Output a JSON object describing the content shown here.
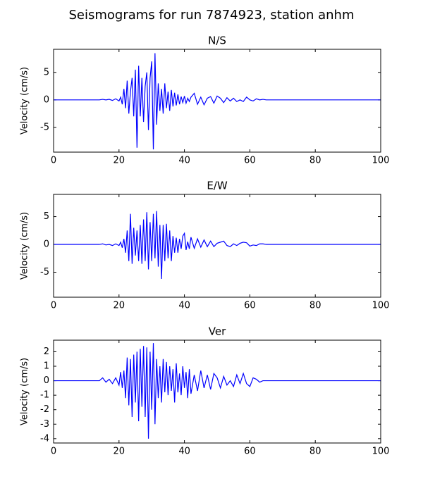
{
  "title": "Seismograms for run 7874923, station anhm",
  "chart_data": [
    {
      "type": "line",
      "title": "N/S",
      "y_label": "Velocity (cm/s)",
      "color": "#0000ff",
      "x": [
        0,
        10,
        14,
        15,
        16,
        17,
        18,
        19,
        20,
        20.5,
        21,
        21.5,
        22,
        22.5,
        23,
        23.5,
        24,
        24.5,
        25,
        25.5,
        26,
        26.5,
        27,
        27.5,
        28,
        28.5,
        29,
        29.5,
        30,
        30.5,
        31,
        31.5,
        32,
        32.5,
        33,
        33.5,
        34,
        34.5,
        35,
        35.5,
        36,
        36.5,
        37,
        37.5,
        38,
        38.5,
        39,
        39.5,
        40,
        40.5,
        41,
        41.5,
        42,
        43,
        44,
        45,
        46,
        47,
        48,
        49,
        50,
        51,
        52,
        53,
        54,
        55,
        56,
        57,
        58,
        59,
        60,
        61,
        62,
        63,
        64,
        65,
        66,
        70,
        100
      ],
      "values": [
        0,
        0,
        0,
        0.1,
        0,
        0.1,
        -0.1,
        0.2,
        -0.2,
        0.5,
        -0.8,
        2,
        -1.5,
        3.5,
        -2.5,
        1.5,
        4,
        -3,
        5.5,
        -8.7,
        6.2,
        -3,
        4,
        -4,
        2.5,
        5,
        -5.5,
        4,
        7,
        -9,
        8.5,
        -4.5,
        3,
        -2,
        2,
        -2.5,
        3,
        -1.5,
        1.5,
        -2,
        1.8,
        -1.2,
        1.3,
        -1,
        1,
        -0.8,
        0.6,
        -0.5,
        0.7,
        -0.6,
        0.3,
        -0.3,
        0.5,
        1.2,
        -0.8,
        0.5,
        -0.9,
        0.3,
        0.6,
        -0.6,
        0.7,
        0.3,
        -0.5,
        0.4,
        -0.2,
        0.3,
        -0.3,
        0,
        -0.3,
        0.5,
        0,
        -0.2,
        0.2,
        0,
        0.1,
        0,
        0,
        0,
        0
      ],
      "xlim": [
        0,
        100
      ],
      "xticks": [
        0,
        20,
        40,
        60,
        80,
        100
      ],
      "ylim": [
        -9.5,
        9.2
      ],
      "yticks": [
        -5,
        0,
        5
      ]
    },
    {
      "type": "line",
      "title": "E/W",
      "y_label": "Velocity (cm/s)",
      "color": "#0000ff",
      "x": [
        0,
        10,
        14,
        15,
        16,
        17,
        18,
        19,
        20,
        20.5,
        21,
        21.5,
        22,
        22.5,
        23,
        23.5,
        24,
        24.5,
        25,
        25.5,
        26,
        26.5,
        27,
        27.5,
        28,
        28.5,
        29,
        29.5,
        30,
        30.5,
        31,
        31.5,
        32,
        32.5,
        33,
        33.5,
        34,
        34.5,
        35,
        35.5,
        36,
        36.5,
        37,
        37.5,
        38,
        38.5,
        39,
        39.5,
        40,
        40.5,
        41,
        41.5,
        42,
        43,
        44,
        45,
        46,
        47,
        48,
        49,
        50,
        51,
        52,
        53,
        54,
        55,
        56,
        57,
        58,
        59,
        60,
        61,
        62,
        63,
        64,
        65,
        66,
        70,
        100
      ],
      "values": [
        0,
        0,
        0,
        0.1,
        -0.1,
        0,
        -0.2,
        0.1,
        -0.2,
        0.4,
        -0.6,
        1,
        -1.5,
        2.5,
        -3,
        5.5,
        -3.5,
        3,
        -2,
        2.5,
        -3,
        3.5,
        -3.5,
        4.5,
        -3,
        5.8,
        -4.5,
        4,
        -3,
        5.5,
        -2.5,
        6,
        -4,
        3.5,
        -6.2,
        3.5,
        -3,
        3.7,
        -2.5,
        2.5,
        -3,
        1.5,
        -1.5,
        1.2,
        -1.5,
        1,
        -0.8,
        1.5,
        2,
        -1,
        0.5,
        -0.8,
        1.3,
        -0.7,
        1,
        -0.5,
        0.8,
        -0.4,
        0.6,
        -0.4,
        0.2,
        0.4,
        0.6,
        -0.2,
        -0.4,
        0.1,
        -0.2,
        0.2,
        0.4,
        0.3,
        -0.3,
        -0.1,
        -0.2,
        0.1,
        0.1,
        0,
        0,
        0,
        0
      ],
      "xlim": [
        0,
        100
      ],
      "xticks": [
        0,
        20,
        40,
        60,
        80,
        100
      ],
      "ylim": [
        -9.5,
        9
      ],
      "yticks": [
        -5,
        0,
        5
      ]
    },
    {
      "type": "line",
      "title": "Ver",
      "y_label": "Velocity (cm/s)",
      "color": "#0000ff",
      "x": [
        0,
        10,
        14,
        15,
        16,
        17,
        18,
        19,
        20,
        20.5,
        21,
        21.5,
        22,
        22.5,
        23,
        23.5,
        24,
        24.5,
        25,
        25.5,
        26,
        26.5,
        27,
        27.5,
        28,
        28.5,
        29,
        29.5,
        30,
        30.5,
        31,
        31.5,
        32,
        32.5,
        33,
        33.5,
        34,
        34.5,
        35,
        35.5,
        36,
        36.5,
        37,
        37.5,
        38,
        38.5,
        39,
        39.5,
        40,
        40.5,
        41,
        41.5,
        42,
        43,
        44,
        45,
        46,
        47,
        48,
        49,
        50,
        51,
        52,
        53,
        54,
        55,
        56,
        57,
        58,
        59,
        60,
        61,
        62,
        63,
        64,
        65,
        66,
        70,
        100
      ],
      "values": [
        0,
        0,
        0,
        0.2,
        -0.1,
        0.1,
        -0.2,
        0.2,
        -0.3,
        0.6,
        -0.5,
        0.7,
        -1.2,
        1.6,
        -1.7,
        1.5,
        -2.5,
        1.8,
        -1.5,
        2,
        -2.8,
        2.2,
        -1.8,
        2.4,
        -2.5,
        2.3,
        -4,
        2,
        -2,
        2.6,
        -3,
        1.5,
        -1.2,
        1,
        -1.5,
        1.5,
        -0.8,
        1.3,
        -1,
        1,
        -0.7,
        0.8,
        -1.5,
        1.2,
        -0.8,
        0.5,
        -1,
        1,
        -0.5,
        0.6,
        -1.2,
        0.8,
        -0.9,
        0.4,
        -0.7,
        0.7,
        -0.5,
        0.4,
        -0.6,
        0.5,
        0.2,
        -0.5,
        0.3,
        -0.3,
        0,
        -0.4,
        0.4,
        -0.2,
        0.5,
        -0.2,
        -0.4,
        0.2,
        0.1,
        -0.1,
        0,
        0,
        0,
        0,
        0
      ],
      "xlim": [
        0,
        100
      ],
      "xticks": [
        0,
        20,
        40,
        60,
        80,
        100
      ],
      "ylim": [
        -4.3,
        2.8
      ],
      "yticks": [
        -4,
        -3,
        -2,
        -1,
        0,
        1,
        2
      ]
    }
  ]
}
